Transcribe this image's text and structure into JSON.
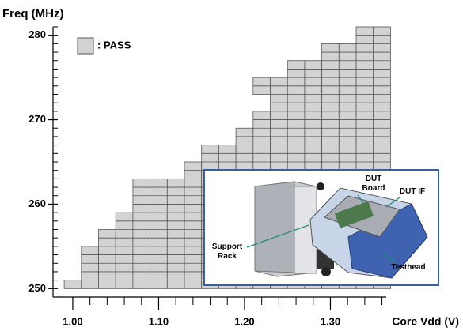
{
  "chart_data": {
    "type": "shmoo",
    "y_title": "Freq (MHz)",
    "x_title": "Core Vdd (V)",
    "legend_label": ": PASS",
    "pass_color": "#d3d3d3",
    "xlim": [
      0.977,
      1.365
    ],
    "ylim": [
      249,
      281
    ],
    "xticks": [
      {
        "value": 1.0,
        "label": "1.00"
      },
      {
        "value": 1.1,
        "label": "1.10"
      },
      {
        "value": 1.2,
        "label": "1.20"
      },
      {
        "value": 1.3,
        "label": "1.30"
      }
    ],
    "xminor_ticks": [
      1.02,
      1.04,
      1.06,
      1.08,
      1.12,
      1.14,
      1.16,
      1.18,
      1.22,
      1.24,
      1.26,
      1.28,
      1.32,
      1.34,
      1.36
    ],
    "yticks": [
      250,
      260,
      270,
      280
    ],
    "yminor_ticks": [
      251,
      252,
      253,
      254,
      255,
      256,
      257,
      258,
      259,
      261,
      262,
      263,
      264,
      265,
      266,
      267,
      268,
      269,
      271,
      272,
      273,
      274,
      275,
      276,
      277,
      278,
      279,
      281
    ],
    "columns": [
      {
        "vdd": 1.0,
        "pass": [
          [
            250,
            250
          ]
        ]
      },
      {
        "vdd": 1.02,
        "pass": [
          [
            250,
            254
          ]
        ]
      },
      {
        "vdd": 1.04,
        "pass": [
          [
            250,
            256
          ]
        ]
      },
      {
        "vdd": 1.06,
        "pass": [
          [
            250,
            258
          ]
        ]
      },
      {
        "vdd": 1.08,
        "pass": [
          [
            250,
            262
          ]
        ]
      },
      {
        "vdd": 1.1,
        "pass": [
          [
            250,
            262
          ]
        ]
      },
      {
        "vdd": 1.12,
        "pass": [
          [
            250,
            262
          ]
        ]
      },
      {
        "vdd": 1.14,
        "pass": [
          [
            250,
            264
          ]
        ]
      },
      {
        "vdd": 1.16,
        "pass": [
          [
            250,
            266
          ]
        ]
      },
      {
        "vdd": 1.18,
        "pass": [
          [
            250,
            266
          ]
        ]
      },
      {
        "vdd": 1.2,
        "pass": [
          [
            250,
            268
          ]
        ]
      },
      {
        "vdd": 1.22,
        "pass": [
          [
            250,
            270
          ],
          [
            273,
            274
          ]
        ]
      },
      {
        "vdd": 1.24,
        "pass": [
          [
            250,
            274
          ]
        ]
      },
      {
        "vdd": 1.26,
        "pass": [
          [
            250,
            276
          ]
        ]
      },
      {
        "vdd": 1.28,
        "pass": [
          [
            250,
            276
          ]
        ]
      },
      {
        "vdd": 1.3,
        "pass": [
          [
            250,
            278
          ]
        ]
      },
      {
        "vdd": 1.32,
        "pass": [
          [
            250,
            278
          ]
        ]
      },
      {
        "vdd": 1.34,
        "pass": [
          [
            250,
            280
          ]
        ]
      },
      {
        "vdd": 1.36,
        "pass": [
          [
            250,
            280
          ]
        ]
      }
    ]
  },
  "inset": {
    "labels": [
      "DUT Board",
      "DUT IF",
      "Support Rack",
      "Testhead"
    ]
  }
}
